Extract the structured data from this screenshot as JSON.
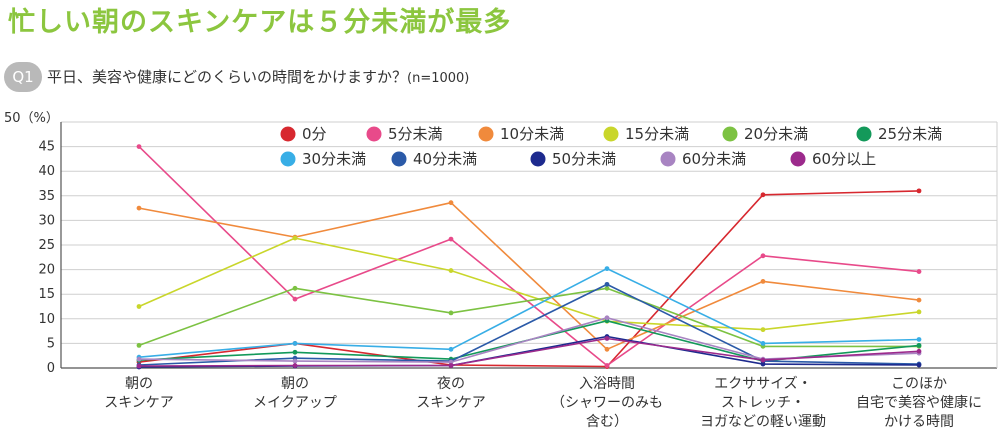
{
  "title": "忙しい朝のスキンケアは５分未満が最多",
  "question": {
    "badge": "Q1",
    "text": "平日、美容や健康にどのくらいの時間をかけますか？",
    "sample": "(n=1000)"
  },
  "chart_data": {
    "type": "line",
    "ylabel": "50（%）",
    "ylim": [
      0,
      50
    ],
    "yticks": [
      0,
      5,
      10,
      15,
      20,
      25,
      30,
      35,
      40,
      45
    ],
    "categories": [
      [
        "朝の",
        "スキンケア"
      ],
      [
        "朝の",
        "メイクアップ"
      ],
      [
        "夜の",
        "スキンケア"
      ],
      [
        "入浴時間",
        "（シャワーのみも",
        "含む）"
      ],
      [
        "エクササイズ・",
        "ストレッチ・",
        "ヨガなどの軽い運動"
      ],
      [
        "このほか",
        "自宅で美容や健康に",
        "かける時間"
      ]
    ],
    "series": [
      {
        "name": "0分",
        "color": "#d7282f",
        "values": [
          1.2,
          5.0,
          0.6,
          0.3,
          35.2,
          36.0
        ]
      },
      {
        "name": "5分未満",
        "color": "#e84a8a",
        "values": [
          45.0,
          14.0,
          26.2,
          0.5,
          22.8,
          19.6
        ]
      },
      {
        "name": "10分未満",
        "color": "#f08a3c",
        "values": [
          32.5,
          26.6,
          33.6,
          3.8,
          17.6,
          13.8
        ]
      },
      {
        "name": "15分未満",
        "color": "#c9d62b",
        "values": [
          12.5,
          26.4,
          19.8,
          9.5,
          7.8,
          11.4
        ]
      },
      {
        "name": "20分未満",
        "color": "#7cc242",
        "values": [
          4.6,
          16.2,
          11.2,
          16.2,
          4.4,
          4.4
        ]
      },
      {
        "name": "25分未満",
        "color": "#13995a",
        "values": [
          1.6,
          3.2,
          1.8,
          9.6,
          1.4,
          4.6
        ]
      },
      {
        "name": "30分未満",
        "color": "#38aee6",
        "values": [
          2.2,
          5.0,
          3.8,
          20.2,
          5.0,
          5.8
        ]
      },
      {
        "name": "40分未満",
        "color": "#2b5aa8",
        "values": [
          0.6,
          2.0,
          1.4,
          17.0,
          1.4,
          0.8
        ]
      },
      {
        "name": "50分未満",
        "color": "#1d2a8e",
        "values": [
          0.2,
          0.4,
          0.5,
          6.4,
          0.8,
          0.6
        ]
      },
      {
        "name": "60分未満",
        "color": "#a884c2",
        "values": [
          1.8,
          1.4,
          1.2,
          10.2,
          1.8,
          3.0
        ]
      },
      {
        "name": "60分以上",
        "color": "#9c2a8c",
        "values": [
          0.4,
          0.5,
          0.5,
          6.0,
          1.6,
          3.4
        ]
      }
    ]
  }
}
